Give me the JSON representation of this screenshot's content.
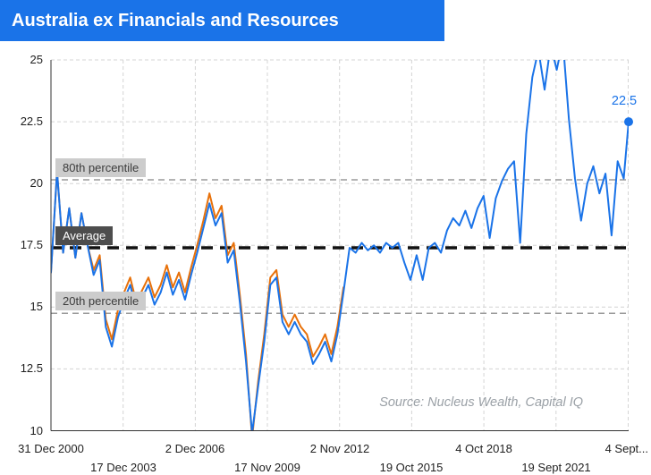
{
  "title": "Australia ex Financials and Resources",
  "header": {
    "background": "#1a73e8",
    "text_color": "#ffffff"
  },
  "chart_data": {
    "type": "line",
    "title": "Australia ex Financials and Resources",
    "ylim": [
      10,
      25
    ],
    "y_ticks": [
      10,
      12.5,
      15,
      17.5,
      20,
      22.5,
      25
    ],
    "x_range": [
      2001.0,
      2024.7
    ],
    "x_tick_years": [
      2001.0,
      2003.96,
      2006.92,
      2009.88,
      2012.84,
      2015.8,
      2018.76,
      2021.72,
      2024.68
    ],
    "x_tick_labels": [
      "31 Dec 2000",
      "17 Dec 2003",
      "2 Dec 2006",
      "17 Nov 2009",
      "2 Nov 2012",
      "19 Oct 2015",
      "4 Oct 2018",
      "19 Sept 2021",
      "4 Sept..."
    ],
    "grid": true,
    "legend": "none",
    "end_label": {
      "value": 22.5,
      "color": "#1a73e8"
    },
    "reference_lines": [
      {
        "label": "80th percentile",
        "value": 20.15,
        "style": "gray-dashed"
      },
      {
        "label": "Average",
        "value": 17.4,
        "style": "black-dashed-bold"
      },
      {
        "label": "20th percentile",
        "value": 14.75,
        "style": "gray-dashed"
      }
    ],
    "source_note": "Source: Nucleus Wealth, Capital IQ",
    "series": [
      {
        "name": "orange",
        "color": "#e8710a",
        "x": [
          2001.0,
          2001.25,
          2001.5,
          2001.75,
          2002.0,
          2002.25,
          2002.5,
          2002.75,
          2003.0,
          2003.25,
          2003.5,
          2003.75,
          2004.0,
          2004.25,
          2004.5,
          2004.75,
          2005.0,
          2005.25,
          2005.5,
          2005.75,
          2006.0,
          2006.25,
          2006.5,
          2006.75,
          2007.0,
          2007.25,
          2007.5,
          2007.75,
          2008.0,
          2008.25,
          2008.5,
          2008.75,
          2009.0,
          2009.25,
          2009.5,
          2009.75,
          2010.0,
          2010.25,
          2010.5,
          2010.75,
          2011.0,
          2011.25,
          2011.5,
          2011.75,
          2012.0,
          2012.25,
          2012.5,
          2012.75,
          2013.0
        ],
        "values": [
          16.4,
          20.5,
          17.2,
          19.0,
          17.0,
          18.8,
          17.5,
          16.5,
          17.1,
          14.5,
          13.7,
          14.9,
          15.6,
          16.2,
          15.2,
          15.7,
          16.2,
          15.4,
          15.9,
          16.7,
          15.8,
          16.4,
          15.6,
          16.6,
          17.5,
          18.5,
          19.6,
          18.6,
          19.1,
          17.1,
          17.6,
          15.5,
          13.1,
          9.7,
          12.0,
          13.9,
          16.2,
          16.5,
          14.7,
          14.2,
          14.7,
          14.2,
          13.9,
          13.0,
          13.4,
          13.9,
          13.1,
          14.2,
          15.8
        ]
      },
      {
        "name": "blue",
        "color": "#1a73e8",
        "x": [
          2001.0,
          2001.25,
          2001.5,
          2001.75,
          2002.0,
          2002.25,
          2002.5,
          2002.75,
          2003.0,
          2003.25,
          2003.5,
          2003.75,
          2004.0,
          2004.25,
          2004.5,
          2004.75,
          2005.0,
          2005.25,
          2005.5,
          2005.75,
          2006.0,
          2006.25,
          2006.5,
          2006.75,
          2007.0,
          2007.25,
          2007.5,
          2007.75,
          2008.0,
          2008.25,
          2008.5,
          2008.75,
          2009.0,
          2009.25,
          2009.5,
          2009.75,
          2010.0,
          2010.25,
          2010.5,
          2010.75,
          2011.0,
          2011.25,
          2011.5,
          2011.75,
          2012.0,
          2012.25,
          2012.5,
          2012.75,
          2013.0,
          2013.25,
          2013.5,
          2013.75,
          2014.0,
          2014.25,
          2014.5,
          2014.75,
          2015.0,
          2015.25,
          2015.5,
          2015.75,
          2016.0,
          2016.25,
          2016.5,
          2016.75,
          2017.0,
          2017.25,
          2017.5,
          2017.75,
          2018.0,
          2018.25,
          2018.5,
          2018.75,
          2019.0,
          2019.25,
          2019.5,
          2019.75,
          2020.0,
          2020.25,
          2020.5,
          2020.75,
          2021.0,
          2021.25,
          2021.5,
          2021.75,
          2022.0,
          2022.25,
          2022.5,
          2022.75,
          2023.0,
          2023.25,
          2023.5,
          2023.75,
          2024.0,
          2024.25,
          2024.5,
          2024.7
        ],
        "values": [
          16.4,
          20.5,
          17.2,
          19.0,
          17.0,
          18.8,
          17.5,
          16.3,
          16.9,
          14.2,
          13.4,
          14.6,
          15.3,
          15.9,
          14.9,
          15.4,
          15.9,
          15.1,
          15.6,
          16.4,
          15.5,
          16.1,
          15.3,
          16.3,
          17.2,
          18.2,
          19.2,
          18.3,
          18.8,
          16.8,
          17.3,
          15.2,
          12.8,
          9.9,
          11.8,
          13.6,
          15.9,
          16.2,
          14.4,
          13.9,
          14.4,
          13.9,
          13.6,
          12.7,
          13.1,
          13.6,
          12.8,
          13.9,
          15.6,
          17.4,
          17.2,
          17.6,
          17.3,
          17.5,
          17.2,
          17.6,
          17.4,
          17.6,
          16.8,
          16.1,
          17.1,
          16.1,
          17.4,
          17.6,
          17.2,
          18.1,
          18.6,
          18.3,
          18.9,
          18.2,
          19.0,
          19.5,
          17.8,
          19.4,
          20.1,
          20.6,
          20.9,
          17.6,
          22.0,
          24.3,
          25.4,
          23.8,
          25.6,
          24.6,
          25.8,
          22.6,
          20.2,
          18.5,
          20.0,
          20.7,
          19.6,
          20.4,
          17.9,
          20.9,
          20.2,
          22.5
        ]
      }
    ]
  }
}
